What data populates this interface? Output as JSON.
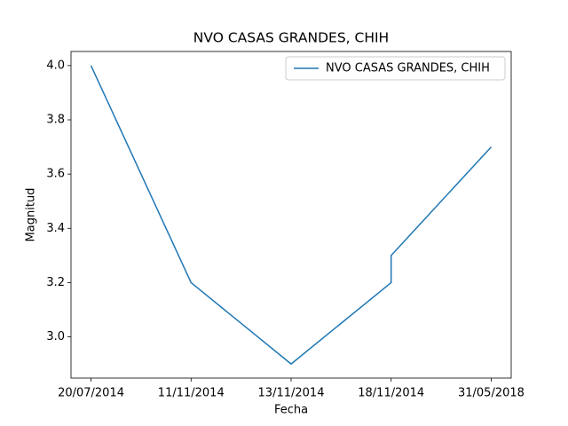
{
  "chart_data": {
    "type": "line",
    "title": "NVO CASAS GRANDES, CHIH",
    "xlabel": "Fecha",
    "ylabel": "Magnitud",
    "categories": [
      "20/07/2014",
      "11/11/2014",
      "13/11/2014",
      "18/11/2014",
      "18/11/2014",
      "31/05/2018"
    ],
    "series": [
      {
        "name": "NVO CASAS GRANDES, CHIH",
        "color": "#1f77b4",
        "values": [
          4.0,
          3.2,
          2.9,
          3.2,
          3.3,
          3.7
        ]
      }
    ],
    "ylim": [
      2.848,
      4.052
    ],
    "yticks": [
      {
        "value": 3,
        "label": "3.0"
      },
      {
        "value": 3.2,
        "label": "3.2"
      },
      {
        "value": 3.4,
        "label": "3.4"
      },
      {
        "value": 3.6,
        "label": "3.6"
      },
      {
        "value": 3.8,
        "label": "3.8"
      },
      {
        "value": 4,
        "label": "4.0"
      }
    ],
    "legend": "upper right",
    "grid": false
  }
}
